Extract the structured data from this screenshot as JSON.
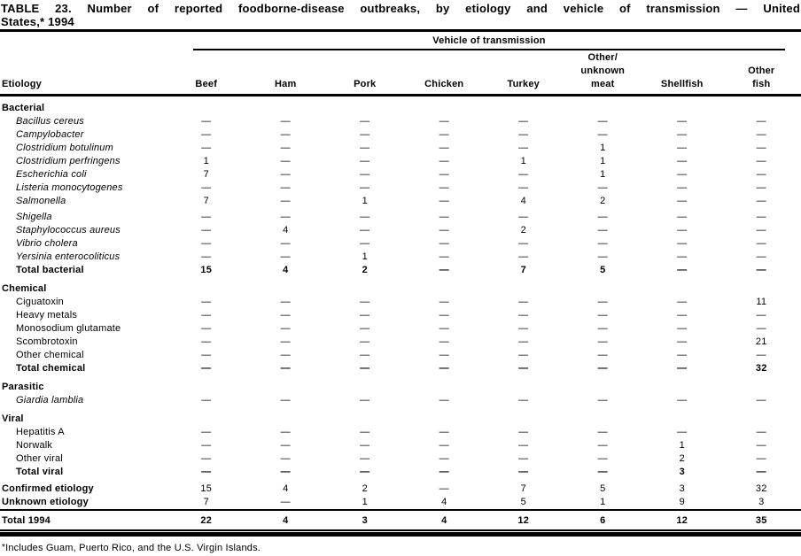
{
  "title": {
    "line1": "TABLE 23. Number of reported foodborne-disease outbreaks, by etiology and vehicle of transmission — United",
    "line2": "States,* 1994"
  },
  "table": {
    "group_header": "Vehicle of transmission",
    "etiology_header": "Etiology",
    "columns": [
      [
        "Beef"
      ],
      [
        "Ham"
      ],
      [
        "Pork"
      ],
      [
        "Chicken"
      ],
      [
        "Turkey"
      ],
      [
        "Other/",
        "unknown",
        "meat"
      ],
      [
        "Shellfish"
      ],
      [
        "Other",
        "fish"
      ]
    ],
    "sections": [
      {
        "label": "Bacterial",
        "rows": [
          {
            "label": "Bacillus cereus",
            "italic": true,
            "values": [
              "—",
              "—",
              "—",
              "—",
              "—",
              "—",
              "—",
              "—"
            ]
          },
          {
            "label": "Campylobacter",
            "italic": true,
            "values": [
              "—",
              "—",
              "—",
              "—",
              "—",
              "—",
              "—",
              "—"
            ]
          },
          {
            "label": "Clostridium botulinum",
            "italic": true,
            "values": [
              "—",
              "—",
              "—",
              "—",
              "—",
              "1",
              "—",
              "—"
            ]
          },
          {
            "label": "Clostridium perfringens",
            "italic": true,
            "values": [
              "1",
              "—",
              "—",
              "—",
              "1",
              "1",
              "—",
              "—"
            ]
          },
          {
            "label": "Escherichia coli",
            "italic": true,
            "values": [
              "7",
              "—",
              "—",
              "—",
              "—",
              "1",
              "—",
              "—"
            ]
          },
          {
            "label": "Listeria monocytogenes",
            "italic": true,
            "values": [
              "—",
              "—",
              "—",
              "—",
              "—",
              "—",
              "—",
              "—"
            ]
          },
          {
            "label": "Salmonella",
            "italic": true,
            "values": [
              "7",
              "—",
              "1",
              "—",
              "4",
              "2",
              "—",
              "—"
            ]
          },
          {
            "label": "Shigella",
            "italic": true,
            "gap_before": true,
            "values": [
              "—",
              "—",
              "—",
              "—",
              "—",
              "—",
              "—",
              "—"
            ]
          },
          {
            "label": "Staphylococcus aureus",
            "italic": true,
            "values": [
              "—",
              "4",
              "—",
              "—",
              "2",
              "—",
              "—",
              "—"
            ]
          },
          {
            "label": "Vibrio cholera",
            "italic": true,
            "values": [
              "—",
              "—",
              "—",
              "—",
              "—",
              "—",
              "—",
              "—"
            ]
          },
          {
            "label": "Yersinia enterocoliticus",
            "italic": true,
            "values": [
              "—",
              "—",
              "1",
              "—",
              "—",
              "—",
              "—",
              "—"
            ]
          },
          {
            "label": "Total bacterial",
            "bold": true,
            "values": [
              "15",
              "4",
              "2",
              "—",
              "7",
              "5",
              "—",
              "—"
            ]
          }
        ]
      },
      {
        "label": "Chemical",
        "rows": [
          {
            "label": "Ciguatoxin",
            "values": [
              "—",
              "—",
              "—",
              "—",
              "—",
              "—",
              "—",
              "11"
            ]
          },
          {
            "label": "Heavy metals",
            "values": [
              "—",
              "—",
              "—",
              "—",
              "—",
              "—",
              "—",
              "—"
            ]
          },
          {
            "label": "Monosodium glutamate",
            "values": [
              "—",
              "—",
              "—",
              "—",
              "—",
              "—",
              "—",
              "—"
            ]
          },
          {
            "label": "Scombrotoxin",
            "values": [
              "—",
              "—",
              "—",
              "—",
              "—",
              "—",
              "—",
              "21"
            ]
          },
          {
            "label": "Other chemical",
            "values": [
              "—",
              "—",
              "—",
              "—",
              "—",
              "—",
              "—",
              "—"
            ]
          },
          {
            "label": "Total chemical",
            "bold": true,
            "values": [
              "—",
              "—",
              "—",
              "—",
              "—",
              "—",
              "—",
              "32"
            ]
          }
        ]
      },
      {
        "label": "Parasitic",
        "rows": [
          {
            "label": "Giardia lamblia",
            "italic": true,
            "values": [
              "—",
              "—",
              "—",
              "—",
              "—",
              "—",
              "—",
              "—"
            ]
          }
        ]
      },
      {
        "label": "Viral",
        "rows": [
          {
            "label": "Hepatitis A",
            "values": [
              "—",
              "—",
              "—",
              "—",
              "—",
              "—",
              "—",
              "—"
            ]
          },
          {
            "label": "Norwalk",
            "values": [
              "—",
              "—",
              "—",
              "—",
              "—",
              "—",
              "1",
              "—"
            ]
          },
          {
            "label": "Other viral",
            "values": [
              "—",
              "—",
              "—",
              "—",
              "—",
              "—",
              "2",
              "—"
            ]
          },
          {
            "label": "Total viral",
            "bold": true,
            "values": [
              "—",
              "—",
              "—",
              "—",
              "—",
              "—",
              "3",
              "—"
            ]
          }
        ]
      }
    ],
    "summary_rows": [
      {
        "label": "Confirmed etiology",
        "values": [
          "15",
          "4",
          "2",
          "—",
          "7",
          "5",
          "3",
          "32"
        ]
      },
      {
        "label": "Unknown etiology",
        "values": [
          "7",
          "—",
          "1",
          "4",
          "5",
          "1",
          "9",
          "3"
        ]
      }
    ],
    "total_row": {
      "label": "Total 1994",
      "values": [
        "22",
        "4",
        "3",
        "4",
        "12",
        "6",
        "12",
        "35"
      ]
    }
  },
  "footnote": {
    "marker": "*",
    "text": "Includes Guam, Puerto Rico, and the U.S. Virgin Islands."
  },
  "colors": {
    "text": "#000000",
    "background": "#ffffff",
    "rule": "#000000"
  }
}
